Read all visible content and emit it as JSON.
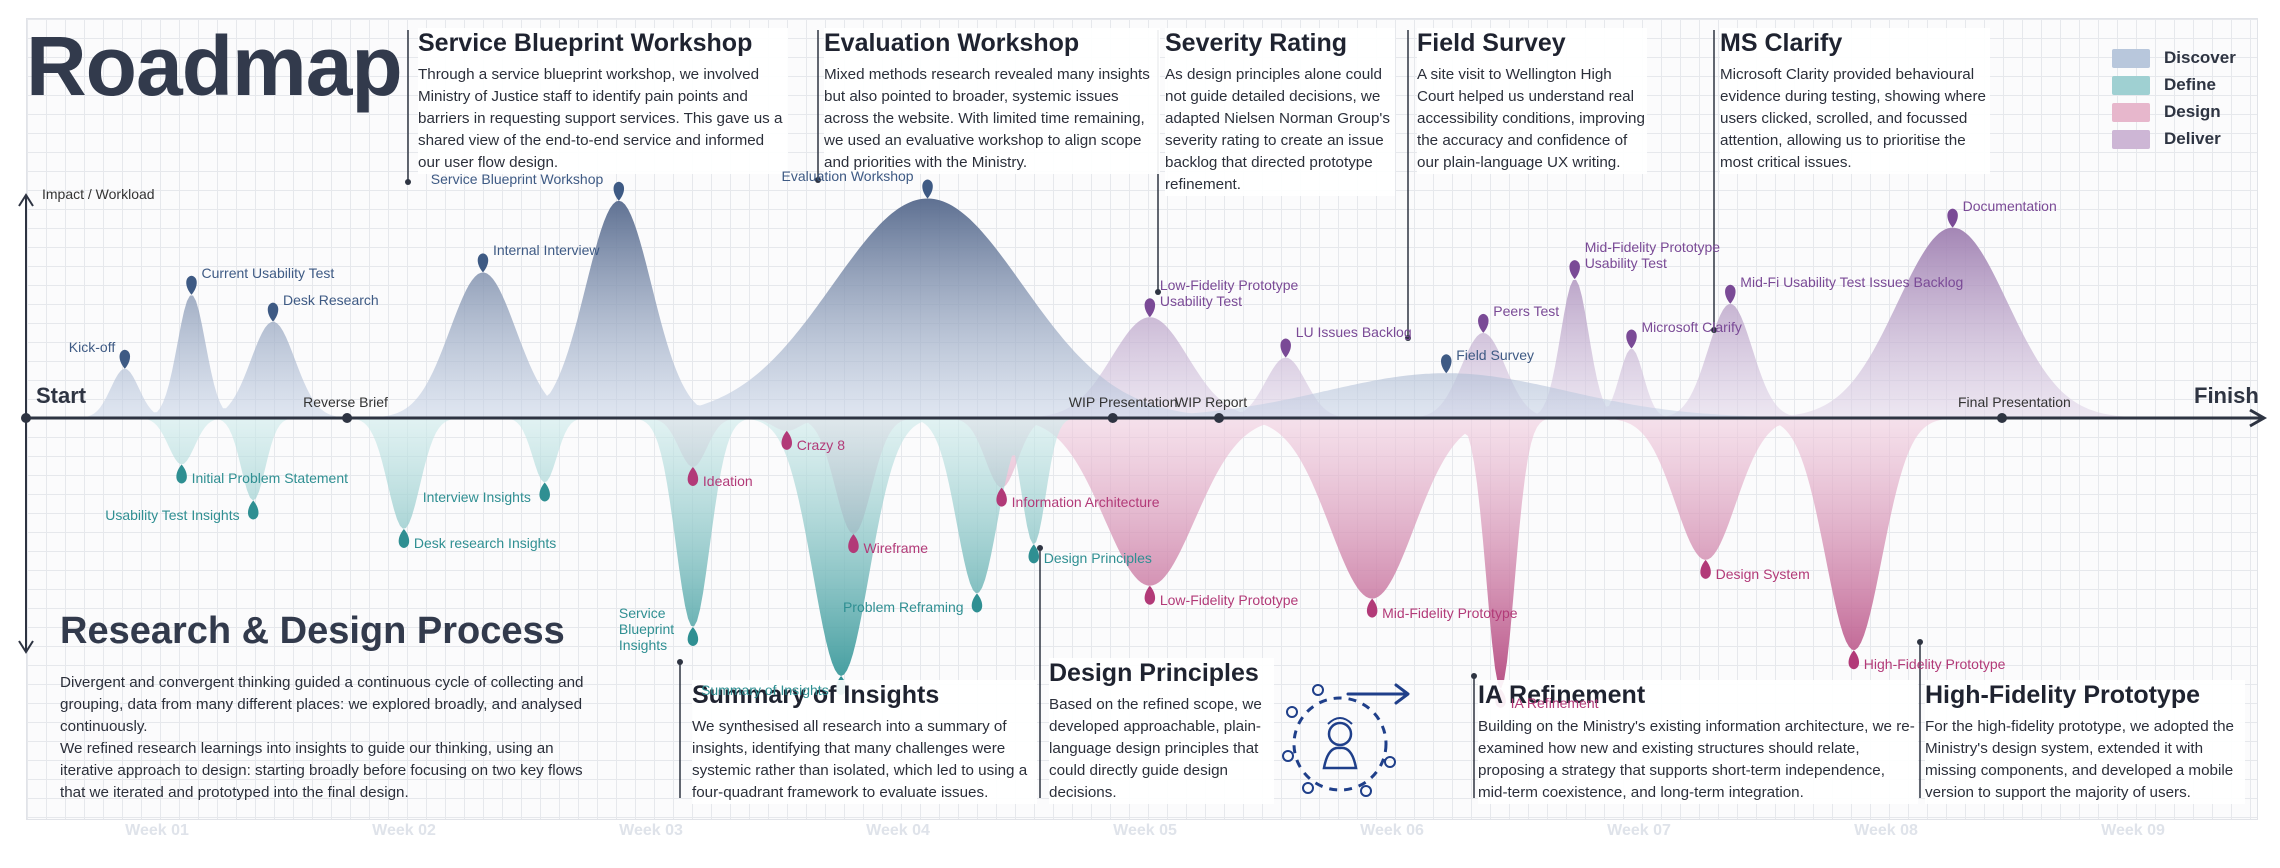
{
  "title": "Roadmap",
  "axis": {
    "impact_label": "Impact / Workload",
    "start": "Start",
    "finish": "Finish"
  },
  "legend": [
    {
      "label": "Discover",
      "color": "#b8c7dc"
    },
    {
      "label": "Define",
      "color": "#9fd0d2"
    },
    {
      "label": "Design",
      "color": "#e7b7cc"
    },
    {
      "label": "Deliver",
      "color": "#cdb6d5"
    }
  ],
  "milestones": [
    {
      "label": "Reverse Brief",
      "week": 1.65
    },
    {
      "label": "WIP Presentation",
      "week": 4.75
    },
    {
      "label": "WIP Report",
      "week": 5.18
    },
    {
      "label": "Final Presentation",
      "week": 8.35
    }
  ],
  "weeks": [
    "Week 01",
    "Week 02",
    "Week 03",
    "Week 04",
    "Week 05",
    "Week 06",
    "Week 07",
    "Week 08",
    "Week 09"
  ],
  "callouts": [
    {
      "key": "sbw",
      "title": "Service Blueprint Workshop",
      "body": "Through a service blueprint workshop, we involved Ministry of Justice staff to identify pain points and barriers in requesting support services. This gave us a shared view of the end-to-end service and informed our user flow design."
    },
    {
      "key": "ew",
      "title": "Evaluation Workshop",
      "body": "Mixed methods research revealed many insights but also pointed to broader, systemic issues across the website. With limited time remaining, we used an evaluative workshop to align scope and priorities with the Ministry."
    },
    {
      "key": "sr",
      "title": "Severity Rating",
      "body": "As design principles alone could not guide detailed decisions, we adapted Nielsen Norman Group's severity rating to create an issue backlog that directed prototype refinement."
    },
    {
      "key": "fs",
      "title": "Field Survey",
      "body": "A site visit to Wellington High Court helped us understand real accessibility conditions, improving the accuracy and confidence of our plain-language UX writing."
    },
    {
      "key": "msc",
      "title": "MS Clarify",
      "body": "Microsoft Clarity provided behavioural evidence during testing, showing where users clicked, scrolled, and focussed attention, allowing us to prioritise the most critical issues."
    },
    {
      "key": "soi",
      "title": "Summary of Insights",
      "body": "We synthesised all research into a summary of insights, identifying that many challenges were systemic rather than isolated, which led to using a four-quadrant framework to evaluate issues."
    },
    {
      "key": "dp",
      "title": "Design Principles",
      "body": "Based on the refined scope, we developed approachable, plain-language design principles that could directly guide design decisions."
    },
    {
      "key": "iar",
      "title": "IA Refinement",
      "body": "Building on the Ministry's existing information architecture, we re-examined how new and existing structures should relate, proposing a strategy that supports short-term independence, mid-term coexistence, and long-term integration."
    },
    {
      "key": "hfp",
      "title": "High-Fidelity Prototype",
      "body": "For the high-fidelity prototype, we adopted the Ministry's design system, extended it with missing components, and developed a mobile version to support the majority of users."
    }
  ],
  "process": {
    "title": "Research & Design Process",
    "body": "Divergent and convergent thinking guided a continuous cycle of collecting and grouping, data from many different places: we explored broadly, and analysed continuously.\nWe refined research learnings into insights to guide our thinking, using an iterative approach to design: starting broadly before focusing on two key flows that we iterated and prototyped into the final design."
  },
  "chart_data": {
    "type": "area",
    "x_unit": "week",
    "x_range": [
      0.35,
      9.6
    ],
    "y_label": "Impact / Workload",
    "series": [
      {
        "name": "Discover",
        "direction": "up",
        "color": "#3e5a84",
        "points": [
          {
            "label": "Kick-off",
            "week": 0.75,
            "value": 0.22
          },
          {
            "label": "Current Usability Test",
            "week": 1.02,
            "value": 0.55
          },
          {
            "label": "Desk Research",
            "week": 1.35,
            "value": 0.43
          },
          {
            "label": "Internal Interview",
            "week": 2.2,
            "value": 0.65
          },
          {
            "label": "Service Blueprint Workshop",
            "week": 2.75,
            "value": 0.97
          },
          {
            "label": "Evaluation Workshop",
            "week": 4.0,
            "value": 0.98
          },
          {
            "label": "Field Survey",
            "week": 6.1,
            "value": 0.2
          }
        ]
      },
      {
        "name": "Define",
        "direction": "down",
        "color": "#2f8f92",
        "points": [
          {
            "label": "Initial Problem Statement",
            "week": 0.98,
            "value": 0.18
          },
          {
            "label": "Usability Test Insights",
            "week": 1.27,
            "value": 0.32
          },
          {
            "label": "Desk research Insights",
            "week": 1.88,
            "value": 0.43
          },
          {
            "label": "Interview Insights",
            "week": 2.45,
            "value": 0.25
          },
          {
            "label": "Service Blueprint Insights",
            "week": 3.05,
            "value": 0.81
          },
          {
            "label": "Summary of Insights",
            "week": 3.65,
            "value": 1.0
          },
          {
            "label": "Problem Reframing",
            "week": 4.2,
            "value": 0.68
          },
          {
            "label": "Design Principles",
            "week": 4.43,
            "value": 0.49
          }
        ]
      },
      {
        "name": "Design",
        "direction": "down",
        "color": "#b23a78",
        "points": [
          {
            "label": "Ideation",
            "week": 3.05,
            "value": 0.19
          },
          {
            "label": "Crazy 8",
            "week": 3.43,
            "value": 0.05
          },
          {
            "label": "Wireframe",
            "week": 3.7,
            "value": 0.45
          },
          {
            "label": "Information Architecture",
            "week": 4.3,
            "value": 0.27
          },
          {
            "label": "Low-Fidelity Prototype",
            "week": 4.9,
            "value": 0.65
          },
          {
            "label": "Mid-Fidelity Prototype",
            "week": 5.8,
            "value": 0.7
          },
          {
            "label": "IA Refinement",
            "week": 6.32,
            "value": 1.05
          },
          {
            "label": "Design System",
            "week": 7.15,
            "value": 0.55
          },
          {
            "label": "High-Fidelity Prototype",
            "week": 7.75,
            "value": 0.9
          }
        ]
      },
      {
        "name": "Deliver",
        "direction": "up",
        "color": "#7a4a96",
        "points": [
          {
            "label": "Low-Fidelity Prototype Usability Test",
            "week": 4.9,
            "value": 0.45
          },
          {
            "label": "LU Issues Backlog",
            "week": 5.45,
            "value": 0.27
          },
          {
            "label": "Peers Test",
            "week": 6.25,
            "value": 0.38
          },
          {
            "label": "Mid-Fidelity Prototype Usability Test",
            "week": 6.62,
            "value": 0.62
          },
          {
            "label": "Microsoft Clarify",
            "week": 6.85,
            "value": 0.31
          },
          {
            "label": "Mid-Fi Usability Test Issues Backlog",
            "week": 7.25,
            "value": 0.51
          },
          {
            "label": "Documentation",
            "week": 8.15,
            "value": 0.85
          }
        ]
      }
    ]
  }
}
